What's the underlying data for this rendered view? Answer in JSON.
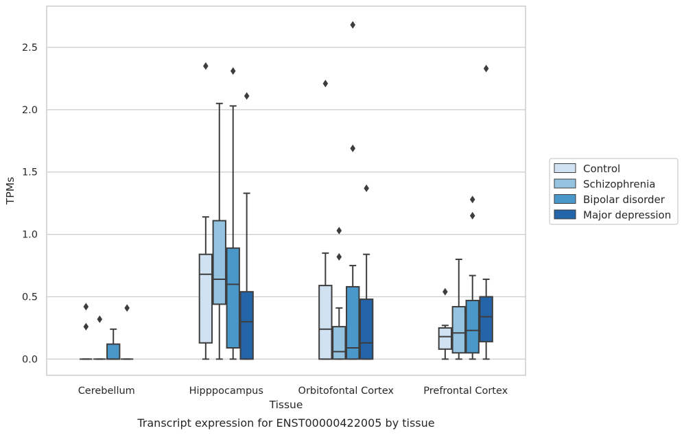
{
  "caption": "Transcript expression for ENST00000422005 by tissue",
  "colors": {
    "Control": "#d0e1f2",
    "Schizophrenia": "#94c4df",
    "Bipolar disorder": "#4a98c9",
    "Major depression": "#2464a8",
    "box_edge": "#3d3d3d",
    "grid": "#cccccc",
    "frame": "#cccccc"
  },
  "chart_data": {
    "type": "boxplot",
    "title": "",
    "xlabel": "Tissue",
    "ylabel": "TPMs",
    "ylim": [
      -0.13,
      2.83
    ],
    "yticks": [
      0.0,
      0.5,
      1.0,
      1.5,
      2.0,
      2.5
    ],
    "ytick_labels": [
      "0.0",
      "0.5",
      "1.0",
      "1.5",
      "2.0",
      "2.5"
    ],
    "grid": "horizontal",
    "legend_position": "right, outside plot",
    "categories": [
      "Cerebellum",
      "Hipppocampus",
      "Orbitofontal Cortex",
      "Prefrontal Cortex"
    ],
    "series": [
      {
        "name": "Control",
        "boxes": [
          {
            "whislo": 0,
            "q1": 0,
            "med": 0,
            "q3": 0,
            "whishi": 0,
            "fliers": [
              0.42,
              0.26
            ]
          },
          {
            "whislo": 0,
            "q1": 0.13,
            "med": 0.68,
            "q3": 0.84,
            "whishi": 1.14,
            "fliers": [
              2.35
            ]
          },
          {
            "whislo": 0,
            "q1": 0,
            "med": 0.24,
            "q3": 0.59,
            "whishi": 0.85,
            "fliers": [
              2.21
            ]
          },
          {
            "whislo": 0,
            "q1": 0.08,
            "med": 0.18,
            "q3": 0.25,
            "whishi": 0.27,
            "fliers": [
              0.54
            ]
          }
        ]
      },
      {
        "name": "Schizophrenia",
        "boxes": [
          {
            "whislo": 0,
            "q1": 0,
            "med": 0,
            "q3": 0,
            "whishi": 0,
            "fliers": [
              0.32
            ]
          },
          {
            "whislo": 0,
            "q1": 0.44,
            "med": 0.64,
            "q3": 1.11,
            "whishi": 2.05,
            "fliers": []
          },
          {
            "whislo": 0,
            "q1": 0,
            "med": 0.06,
            "q3": 0.26,
            "whishi": 0.41,
            "fliers": [
              1.03,
              0.82
            ]
          },
          {
            "whislo": 0,
            "q1": 0.05,
            "med": 0.21,
            "q3": 0.42,
            "whishi": 0.8,
            "fliers": []
          }
        ]
      },
      {
        "name": "Bipolar disorder",
        "boxes": [
          {
            "whislo": 0,
            "q1": 0,
            "med": 0,
            "q3": 0.12,
            "whishi": 0.24,
            "fliers": []
          },
          {
            "whislo": 0,
            "q1": 0.09,
            "med": 0.6,
            "q3": 0.89,
            "whishi": 2.03,
            "fliers": [
              2.31
            ]
          },
          {
            "whislo": 0,
            "q1": 0,
            "med": 0.09,
            "q3": 0.58,
            "whishi": 0.75,
            "fliers": [
              2.68,
              1.69
            ]
          },
          {
            "whislo": 0,
            "q1": 0.05,
            "med": 0.23,
            "q3": 0.47,
            "whishi": 0.67,
            "fliers": [
              1.28,
              1.15
            ]
          }
        ]
      },
      {
        "name": "Major depression",
        "boxes": [
          {
            "whislo": 0,
            "q1": 0,
            "med": 0,
            "q3": 0,
            "whishi": 0,
            "fliers": [
              0.41
            ]
          },
          {
            "whislo": 0,
            "q1": 0,
            "med": 0.3,
            "q3": 0.54,
            "whishi": 1.33,
            "fliers": [
              2.11
            ]
          },
          {
            "whislo": 0,
            "q1": 0,
            "med": 0.13,
            "q3": 0.48,
            "whishi": 0.84,
            "fliers": [
              1.37
            ]
          },
          {
            "whislo": 0,
            "q1": 0.14,
            "med": 0.34,
            "q3": 0.5,
            "whishi": 0.64,
            "fliers": [
              2.33
            ]
          }
        ]
      }
    ]
  }
}
